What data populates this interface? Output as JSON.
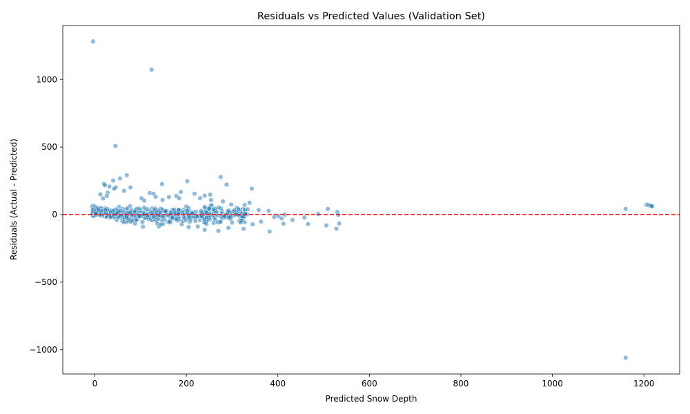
{
  "chart_data": {
    "type": "scatter",
    "title": "Residuals vs Predicted Values (Validation Set)",
    "xlabel": "Predicted Snow Depth",
    "ylabel": "Residuals (Actual - Predicted)",
    "xlim": [
      -70,
      1278
    ],
    "ylim": [
      -1180,
      1400
    ],
    "xticks": [
      0,
      200,
      400,
      600,
      800,
      1000,
      1200
    ],
    "yticks": [
      -1000,
      -500,
      0,
      500,
      1000
    ],
    "xtick_labels": [
      "0",
      "200",
      "400",
      "600",
      "800",
      "1000",
      "1200"
    ],
    "ytick_labels": [
      "−1000",
      "−500",
      "0",
      "500",
      "1000"
    ],
    "grid": false,
    "point_color": "#1f77b4",
    "point_alpha": 0.5,
    "reference_line": {
      "y": 0,
      "color": "#ff0000",
      "style": "dashed"
    },
    "points": [
      [
        -4,
        1282
      ],
      [
        124,
        1073
      ],
      [
        45,
        508
      ],
      [
        70,
        292
      ],
      [
        55,
        268
      ],
      [
        40,
        252
      ],
      [
        202,
        247
      ],
      [
        275,
        278
      ],
      [
        288,
        222
      ],
      [
        20,
        228
      ],
      [
        22,
        218
      ],
      [
        147,
        226
      ],
      [
        343,
        192
      ],
      [
        32,
        208
      ],
      [
        78,
        202
      ],
      [
        46,
        202
      ],
      [
        42,
        192
      ],
      [
        64,
        176
      ],
      [
        188,
        168
      ],
      [
        120,
        160
      ],
      [
        128,
        155
      ],
      [
        218,
        155
      ],
      [
        240,
        140
      ],
      [
        252,
        148
      ],
      [
        178,
        138
      ],
      [
        133,
        132
      ],
      [
        162,
        130
      ],
      [
        184,
        122
      ],
      [
        230,
        122
      ],
      [
        28,
        162
      ],
      [
        12,
        150
      ],
      [
        26,
        138
      ],
      [
        18,
        120
      ],
      [
        102,
        120
      ],
      [
        108,
        105
      ],
      [
        148,
        108
      ],
      [
        254,
        108
      ],
      [
        280,
        98
      ],
      [
        338,
        88
      ],
      [
        298,
        75
      ],
      [
        200,
        60
      ],
      [
        254,
        70
      ],
      [
        264,
        32
      ],
      [
        325,
        42
      ],
      [
        358,
        34
      ],
      [
        380,
        28
      ],
      [
        509,
        42
      ],
      [
        530,
        20
      ],
      [
        488,
        5
      ],
      [
        532,
        -2
      ],
      [
        415,
        0
      ],
      [
        401,
        -10
      ],
      [
        392,
        -18
      ],
      [
        408,
        -28
      ],
      [
        458,
        -22
      ],
      [
        432,
        -40
      ],
      [
        412,
        -68
      ],
      [
        466,
        -70
      ],
      [
        506,
        -80
      ],
      [
        528,
        -104
      ],
      [
        534,
        -65
      ],
      [
        382,
        -125
      ],
      [
        325,
        -105
      ],
      [
        345,
        -72
      ],
      [
        363,
        -52
      ],
      [
        292,
        -98
      ],
      [
        270,
        -120
      ],
      [
        240,
        -112
      ],
      [
        225,
        -88
      ],
      [
        205,
        -92
      ],
      [
        190,
        -72
      ],
      [
        165,
        -58
      ],
      [
        140,
        -88
      ],
      [
        105,
        -90
      ],
      [
        88,
        -66
      ],
      [
        70,
        -55
      ],
      [
        60,
        -48
      ],
      [
        48,
        -40
      ],
      [
        1160,
        42
      ],
      [
        1160,
        -1060
      ],
      [
        1205,
        72
      ],
      [
        1208,
        74
      ],
      [
        1210,
        70
      ],
      [
        1212,
        68
      ],
      [
        1214,
        66
      ],
      [
        1216,
        64
      ],
      [
        1218,
        62
      ]
    ]
  }
}
